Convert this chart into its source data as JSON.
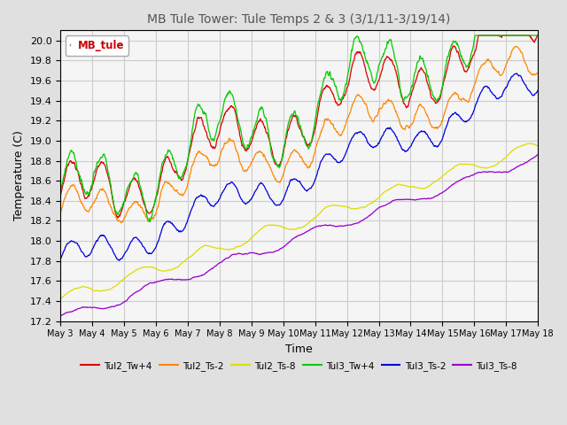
{
  "title": "MB Tule Tower: Tule Temps 2 & 3 (3/1/11-3/19/14)",
  "xlabel": "Time",
  "ylabel": "Temperature (C)",
  "ylim": [
    17.2,
    20.1
  ],
  "xlim": [
    0,
    15
  ],
  "x_tick_labels": [
    "May 3",
    "May 4",
    "May 5",
    "May 6",
    "May 7",
    "May 8",
    "May 9",
    "May 10",
    "May 11",
    "May 12",
    "May 13",
    "May 14",
    "May 15",
    "May 16",
    "May 17",
    "May 18"
  ],
  "legend_label": "MB_tule",
  "series_colors": {
    "Tul2_Tw+4": "#dd0000",
    "Tul2_Ts-2": "#ff8800",
    "Tul2_Ts-8": "#dddd00",
    "Tul3_Tw+4": "#00cc00",
    "Tul3_Ts-2": "#0000dd",
    "Tul3_Ts-8": "#9900cc"
  },
  "background_color": "#e0e0e0",
  "plot_bg_color": "#f5f5f5",
  "grid_color": "#cccccc",
  "title_color": "#555555"
}
